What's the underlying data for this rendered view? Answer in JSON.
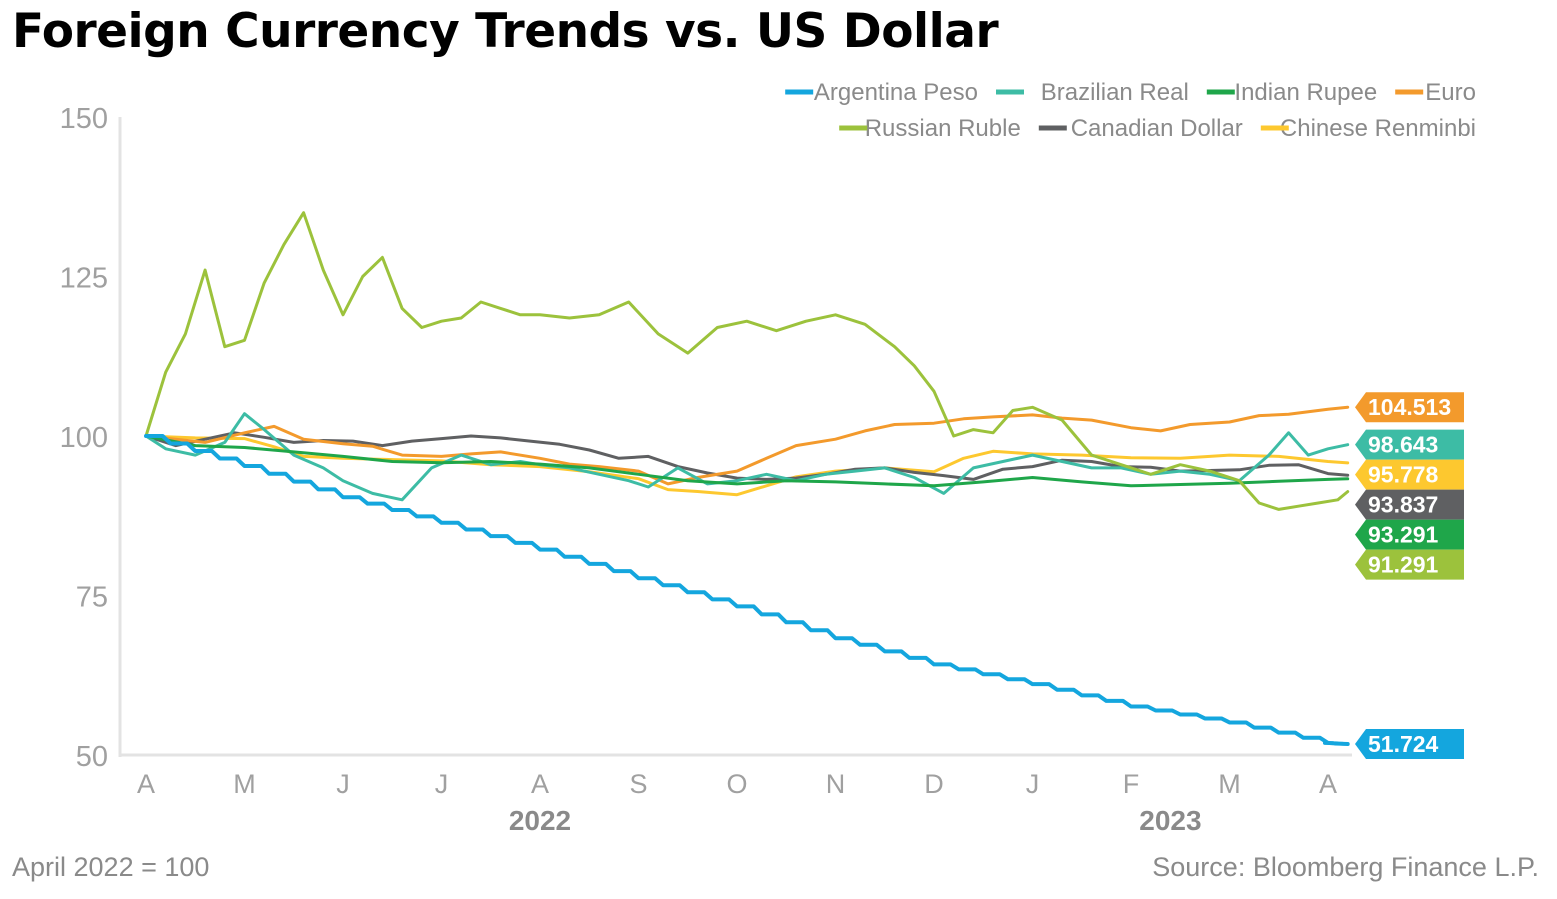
{
  "title": "Foreign Currency Trends vs. US Dollar",
  "footnote": "April 2022 = 100",
  "source": "Source: Bloomberg Finance L.P.",
  "chart_data": {
    "type": "line",
    "title": "Foreign Currency Trends vs. US Dollar",
    "ylim": [
      50,
      150
    ],
    "yticks": [
      50,
      75,
      100,
      125,
      150
    ],
    "xlim": [
      0,
      12.2
    ],
    "month_ticks": [
      "A",
      "M",
      "J",
      "J",
      "A",
      "S",
      "O",
      "N",
      "D",
      "J",
      "F",
      "M",
      "A"
    ],
    "year_labels": [
      {
        "label": "2022",
        "at_month_index": 4
      },
      {
        "label": "2023",
        "at_month_index": 10.4
      }
    ],
    "grid": false,
    "legend_position": "top-right",
    "series": [
      {
        "name": "Argentina Peso",
        "color": "#14a6de",
        "end_value": 51.724,
        "x": [
          0,
          1,
          2,
          3,
          4,
          5,
          6,
          7,
          8,
          9,
          10,
          11,
          12,
          12.2
        ],
        "y": [
          100,
          95.3,
          90.4,
          86.4,
          82.2,
          77.7,
          73.3,
          68.3,
          64.2,
          61.1,
          57.6,
          55.1,
          51.9,
          51.724
        ]
      },
      {
        "name": "Brazilian Real",
        "color": "#3dbca5",
        "end_value": 98.643,
        "x": [
          0,
          0.2,
          0.5,
          0.8,
          1,
          1.2,
          1.5,
          1.8,
          2,
          2.3,
          2.6,
          2.9,
          3.2,
          3.5,
          3.8,
          4,
          4.3,
          4.6,
          4.9,
          5.1,
          5.4,
          5.7,
          6,
          6.3,
          6.6,
          6.9,
          7.2,
          7.5,
          7.8,
          8.1,
          8.4,
          8.7,
          9,
          9.3,
          9.6,
          9.9,
          10.2,
          10.5,
          10.8,
          11.1,
          11.4,
          11.6,
          11.8,
          12,
          12.2
        ],
        "y": [
          100,
          98,
          97,
          99,
          103.5,
          101,
          97,
          95,
          93,
          91,
          90,
          95,
          97,
          95.5,
          96,
          95.5,
          95,
          94,
          93,
          92,
          95,
          92.5,
          93,
          94,
          93,
          94,
          94.5,
          95,
          93.5,
          91,
          95,
          96,
          97,
          96,
          95,
          95,
          94,
          94.5,
          94,
          93,
          97,
          100.5,
          97,
          98,
          98.643
        ]
      },
      {
        "name": "Indian Rupee",
        "color": "#1fa64a",
        "end_value": 93.291,
        "x": [
          0,
          0.5,
          1,
          1.5,
          2,
          2.5,
          3,
          3.5,
          4,
          4.5,
          5,
          5.5,
          6,
          6.5,
          7,
          7.5,
          8,
          8.5,
          9,
          9.5,
          10,
          10.5,
          11,
          11.5,
          12,
          12.2
        ],
        "y": [
          100,
          98.5,
          98.2,
          97.5,
          96.8,
          96,
          95.8,
          96,
          95.6,
          95,
          94,
          93,
          92.5,
          93,
          92.8,
          92.5,
          92.2,
          92.8,
          93.5,
          92.8,
          92.2,
          92.4,
          92.6,
          92.9,
          93.2,
          93.291
        ]
      },
      {
        "name": "Euro",
        "color": "#f39a2c",
        "end_value": 104.513,
        "x": [
          0,
          0.3,
          0.6,
          1,
          1.3,
          1.6,
          2,
          2.3,
          2.6,
          3,
          3.3,
          3.6,
          4,
          4.3,
          4.6,
          5,
          5.3,
          5.6,
          6,
          6.3,
          6.6,
          7,
          7.3,
          7.6,
          8,
          8.3,
          8.6,
          9,
          9.3,
          9.6,
          10,
          10.3,
          10.6,
          11,
          11.3,
          11.6,
          12,
          12.2
        ],
        "y": [
          100,
          99.5,
          99,
          100.5,
          101.5,
          99.5,
          98.8,
          98.4,
          97,
          96.8,
          97.2,
          97.5,
          96.5,
          95.6,
          95.2,
          94.5,
          92.5,
          93.5,
          94.5,
          96.5,
          98.5,
          99.5,
          100.8,
          101.8,
          102,
          102.7,
          103,
          103.3,
          102.8,
          102.5,
          101.3,
          100.8,
          101.8,
          102.2,
          103.2,
          103.4,
          104.2,
          104.513
        ]
      },
      {
        "name": "Russian Ruble",
        "color": "#9cc23c",
        "end_value": 91.291,
        "x": [
          0,
          0.2,
          0.4,
          0.6,
          0.8,
          1,
          1.2,
          1.4,
          1.6,
          1.8,
          2,
          2.2,
          2.4,
          2.6,
          2.8,
          3,
          3.2,
          3.4,
          3.6,
          3.8,
          4,
          4.3,
          4.6,
          4.9,
          5.2,
          5.5,
          5.8,
          6.1,
          6.4,
          6.7,
          7,
          7.3,
          7.6,
          7.8,
          8,
          8.2,
          8.4,
          8.6,
          8.8,
          9,
          9.3,
          9.6,
          9.9,
          10.2,
          10.5,
          10.8,
          11.1,
          11.3,
          11.5,
          11.7,
          11.9,
          12.1,
          12.2
        ],
        "y": [
          100,
          110,
          116,
          126,
          114,
          115,
          124,
          130,
          135,
          126,
          119,
          125,
          128,
          120,
          117,
          118,
          118.5,
          121,
          120,
          119,
          119,
          118.5,
          119,
          121,
          116,
          113,
          117,
          118,
          116.5,
          118,
          119,
          117.5,
          114,
          111,
          107,
          100,
          101,
          100.5,
          104,
          104.5,
          102.5,
          97,
          95.5,
          94,
          95.5,
          94.5,
          93,
          89.5,
          88.5,
          89,
          89.5,
          90,
          91.291
        ]
      },
      {
        "name": "Canadian Dollar",
        "color": "#5f6062",
        "end_value": 93.837,
        "x": [
          0,
          0.3,
          0.6,
          0.9,
          1.2,
          1.5,
          1.8,
          2.1,
          2.4,
          2.7,
          3,
          3.3,
          3.6,
          3.9,
          4.2,
          4.5,
          4.8,
          5.1,
          5.4,
          5.7,
          6,
          6.3,
          6.6,
          6.9,
          7.2,
          7.5,
          7.8,
          8.1,
          8.4,
          8.7,
          9,
          9.3,
          9.6,
          9.9,
          10.2,
          10.5,
          10.8,
          11.1,
          11.4,
          11.7,
          12,
          12.2
        ],
        "y": [
          100,
          98.5,
          99.5,
          100.5,
          99.8,
          99,
          99.3,
          99.2,
          98.5,
          99.2,
          99.6,
          100,
          99.7,
          99.2,
          98.7,
          97.8,
          96.5,
          96.8,
          95.2,
          94.2,
          93.4,
          93.2,
          93.4,
          94,
          94.8,
          95,
          94.3,
          93.8,
          93.2,
          94.8,
          95.2,
          96.2,
          96,
          95.2,
          95.1,
          94.5,
          94.6,
          94.7,
          95.4,
          95.5,
          94.1,
          93.837
        ]
      },
      {
        "name": "Chinese Renminbi",
        "color": "#fdc82f",
        "end_value": 95.778,
        "x": [
          0,
          0.5,
          1,
          1.3,
          1.6,
          2,
          2.5,
          3,
          3.5,
          4,
          4.5,
          5,
          5.3,
          5.6,
          6,
          6.3,
          6.6,
          7,
          7.5,
          8,
          8.3,
          8.6,
          9,
          9.5,
          10,
          10.5,
          11,
          11.5,
          12,
          12.2
        ],
        "y": [
          100,
          99.7,
          99.6,
          98.3,
          96.8,
          96.5,
          96.3,
          96.1,
          95.5,
          95.2,
          94.4,
          93.3,
          91.6,
          91.3,
          90.8,
          92.2,
          93.6,
          94.5,
          95,
          94.4,
          96.5,
          97.6,
          97.2,
          97,
          96.6,
          96.5,
          97,
          96.8,
          96,
          95.778
        ]
      }
    ]
  }
}
